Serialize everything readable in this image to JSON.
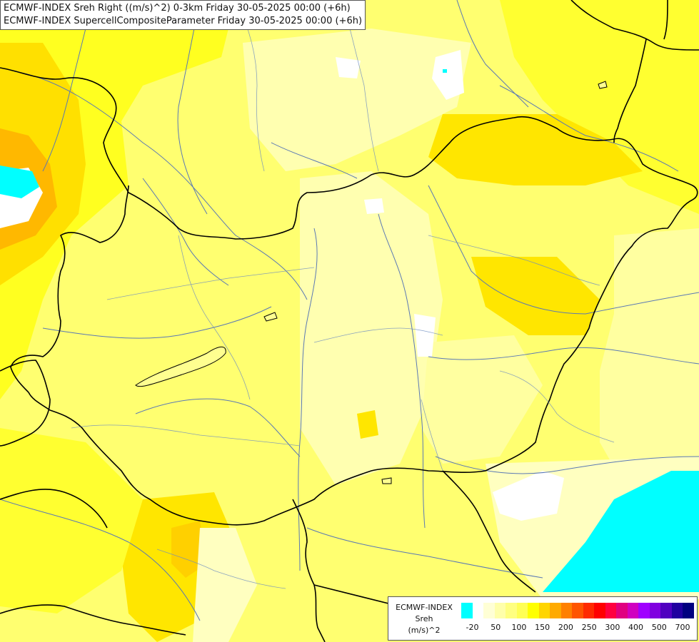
{
  "title": {
    "line1": "ECMWF-INDEX Sreh Right ((m/s)^2) 0-3km Friday 30-05-2025 00:00 (+6h)",
    "line2": "ECMWF-INDEX SupercellCompositeParameter Friday 30-05-2025 00:00 (+6h)"
  },
  "legend": {
    "line1": "ECMWF-INDEX",
    "line2": "Sreh",
    "line3": "(m/s)^2",
    "colors": [
      "#00ffff",
      "#ffffff",
      "#ffffd5",
      "#ffffaa",
      "#ffff80",
      "#ffff55",
      "#ffff00",
      "#ffd500",
      "#ffaa00",
      "#ff8000",
      "#ff5500",
      "#ff2a00",
      "#ff0000",
      "#ff0040",
      "#e00080",
      "#d000c0",
      "#a000ff",
      "#8000e0",
      "#5000c0",
      "#2000a0",
      "#000080"
    ],
    "ticks": [
      "-20",
      "50",
      "100",
      "150",
      "200",
      "250",
      "300",
      "400",
      "500",
      "700"
    ]
  },
  "colors": {
    "cyan": "#00ffff",
    "white": "#ffffff",
    "pale_yellow": "#ffffc0",
    "light_yellow": "#ffff80",
    "yellow": "#ffff20",
    "gold": "#ffd500",
    "orange": "#ffaa00",
    "border": "#000000",
    "river": "#5a78b4"
  }
}
